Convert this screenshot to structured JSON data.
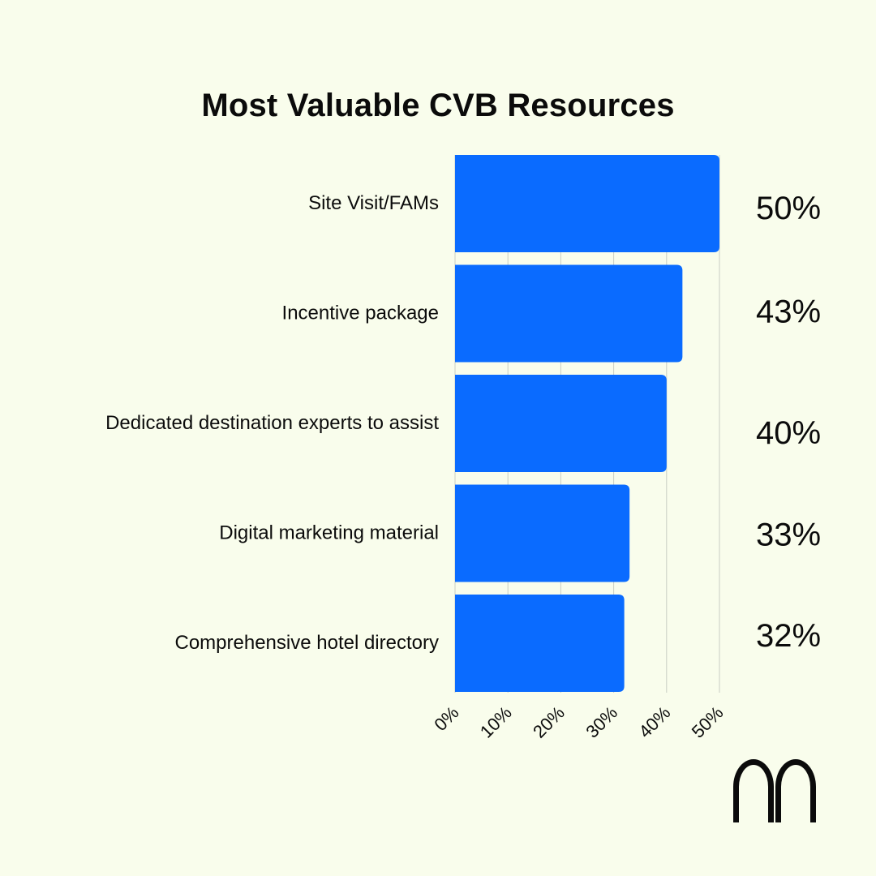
{
  "chart_data": {
    "type": "bar",
    "orientation": "horizontal",
    "title": "Most Valuable CVB Resources",
    "categories": [
      "Site Visit/FAMs",
      "Incentive package",
      "Dedicated destination experts to assist",
      "Digital marketing material",
      "Comprehensive hotel directory"
    ],
    "values": [
      50,
      43,
      40,
      33,
      32
    ],
    "value_labels": [
      "50%",
      "43%",
      "40%",
      "33%",
      "32%"
    ],
    "xlim": [
      0,
      50
    ],
    "x_ticks": [
      "0%",
      "10%",
      "20%",
      "30%",
      "40%",
      "50%"
    ],
    "grid": true,
    "legend": "none",
    "colors": {
      "bar": "#0a6bff",
      "background": "#f9fdec",
      "grid": "#c9cdc3",
      "text": "#0b0b0b"
    }
  },
  "logo": {
    "icon": "arch-m-logo-icon"
  }
}
